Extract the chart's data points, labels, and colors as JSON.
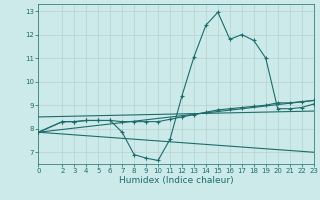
{
  "xlabel": "Humidex (Indice chaleur)",
  "bg_color": "#cdeaea",
  "grid_color": "#b8d0d0",
  "line_color": "#1e6b6b",
  "xlim": [
    0,
    23
  ],
  "ylim": [
    6.5,
    13.3
  ],
  "xticks": [
    0,
    2,
    3,
    4,
    5,
    6,
    7,
    8,
    9,
    10,
    11,
    12,
    13,
    14,
    15,
    16,
    17,
    18,
    19,
    20,
    21,
    22,
    23
  ],
  "yticks": [
    7,
    8,
    9,
    10,
    11,
    12,
    13
  ],
  "line1_x": [
    0,
    2,
    3,
    4,
    5,
    6,
    7,
    8,
    9,
    10,
    11,
    12,
    13,
    14,
    15,
    16,
    17,
    18,
    19,
    20,
    21,
    22,
    23
  ],
  "line1_y": [
    7.85,
    8.3,
    8.3,
    8.35,
    8.35,
    8.35,
    7.85,
    6.9,
    6.75,
    6.65,
    7.55,
    9.4,
    11.05,
    12.4,
    12.95,
    11.8,
    12.0,
    11.75,
    11.0,
    8.85,
    8.85,
    8.9,
    9.05
  ],
  "line2_x": [
    0,
    2,
    3,
    4,
    5,
    6,
    7,
    8,
    9,
    10,
    11,
    12,
    13,
    14,
    15,
    16,
    17,
    18,
    19,
    20,
    21,
    22,
    23
  ],
  "line2_y": [
    7.85,
    8.3,
    8.3,
    8.35,
    8.35,
    8.35,
    8.3,
    8.3,
    8.3,
    8.3,
    8.4,
    8.5,
    8.6,
    8.7,
    8.8,
    8.85,
    8.9,
    8.95,
    9.0,
    9.1,
    9.1,
    9.15,
    9.2
  ],
  "line3_x": [
    0,
    23
  ],
  "line3_y": [
    7.85,
    9.2
  ],
  "line4_x": [
    0,
    23
  ],
  "line4_y": [
    8.5,
    8.75
  ],
  "line5_x": [
    0,
    23
  ],
  "line5_y": [
    7.85,
    7.0
  ]
}
